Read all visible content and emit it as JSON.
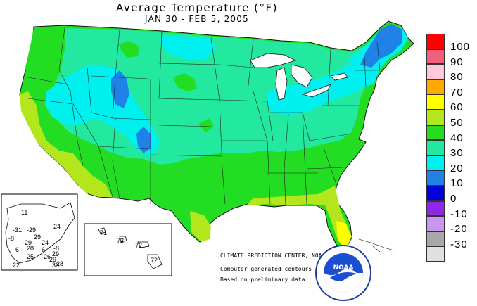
{
  "header": {
    "title": "Average Temperature (°F)",
    "subtitle": "JAN 30 - FEB  5, 2005"
  },
  "legend": {
    "items": [
      {
        "label": "100",
        "color": "#ff0000"
      },
      {
        "label": "90",
        "color": "#f0607a"
      },
      {
        "label": "80",
        "color": "#ffc8d8"
      },
      {
        "label": "70",
        "color": "#ffaa00"
      },
      {
        "label": "60",
        "color": "#ffff00"
      },
      {
        "label": "50",
        "color": "#b4e61e"
      },
      {
        "label": "40",
        "color": "#22dd22"
      },
      {
        "label": "30",
        "color": "#22e8a0"
      },
      {
        "label": "20",
        "color": "#00f0f0"
      },
      {
        "label": "10",
        "color": "#1e82e6"
      },
      {
        "label": "0",
        "color": "#0000dd"
      },
      {
        "label": "-10",
        "color": "#8c28e6"
      },
      {
        "label": "-20",
        "color": "#c896f0"
      }
    ],
    "bottom_label": "-30",
    "bottom_color": "#a8a8a8",
    "extra_color": "#e0e0e0"
  },
  "credits": {
    "center": "CLIMATE PREDICTION CENTER, NOAA",
    "line1": "Computer generated contours",
    "line2": "Based on preliminary data"
  },
  "logo": {
    "text": "NOAA"
  },
  "alaska_values": [
    "11",
    "24",
    "-31",
    "-29",
    "29",
    "-8",
    "-29",
    "-24",
    "-8",
    "6",
    "28",
    "-6",
    "25",
    "26",
    "29",
    "29",
    "22",
    "28",
    "30"
  ],
  "hawaii_values": [
    "71",
    "72",
    "72",
    "72"
  ]
}
